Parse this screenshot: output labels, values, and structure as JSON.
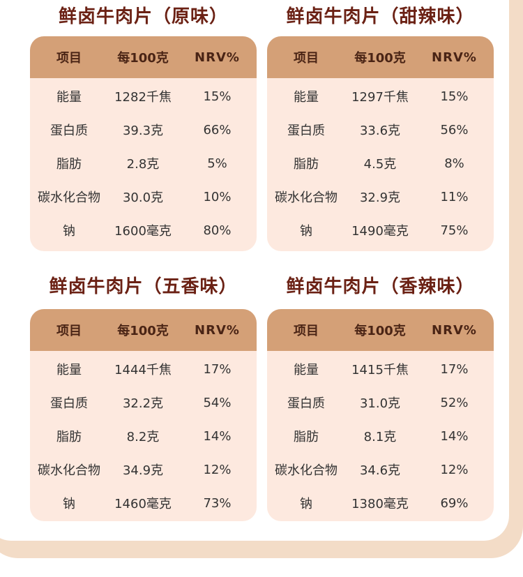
{
  "panels": [
    {
      "title": "鲜卤牛肉片（原味）",
      "headers": [
        "项目",
        "每100克",
        "NRV%"
      ],
      "rows": [
        [
          "能量",
          "1282千焦",
          "15%"
        ],
        [
          "蛋白质",
          "39.3克",
          "66%"
        ],
        [
          "脂肪",
          "2.8克",
          "5%"
        ],
        [
          "碳水化合物",
          "30.0克",
          "10%"
        ],
        [
          "钠",
          "1600毫克",
          "80%"
        ]
      ]
    },
    {
      "title": "鲜卤牛肉片（甜辣味）",
      "headers": [
        "项目",
        "每100克",
        "NRV%"
      ],
      "rows": [
        [
          "能量",
          "1297千焦",
          "15%"
        ],
        [
          "蛋白质",
          "33.6克",
          "56%"
        ],
        [
          "脂肪",
          "4.5克",
          "8%"
        ],
        [
          "碳水化合物",
          "32.9克",
          "11%"
        ],
        [
          "钠",
          "1490毫克",
          "75%"
        ]
      ]
    },
    {
      "title": "鲜卤牛肉片（五香味）",
      "headers": [
        "项目",
        "每100克",
        "NRV%"
      ],
      "rows": [
        [
          "能量",
          "1444千焦",
          "17%"
        ],
        [
          "蛋白质",
          "32.2克",
          "54%"
        ],
        [
          "脂肪",
          "8.2克",
          "14%"
        ],
        [
          "碳水化合物",
          "34.9克",
          "12%"
        ],
        [
          "钠",
          "1460毫克",
          "73%"
        ]
      ]
    },
    {
      "title": "鲜卤牛肉片（香辣味）",
      "headers": [
        "项目",
        "每100克",
        "NRV%"
      ],
      "rows": [
        [
          "能量",
          "1415千焦",
          "17%"
        ],
        [
          "蛋白质",
          "31.0克",
          "52%"
        ],
        [
          "脂肪",
          "8.1克",
          "14%"
        ],
        [
          "碳水化合物",
          "34.6克",
          "12%"
        ],
        [
          "钠",
          "1380毫克",
          "69%"
        ]
      ]
    }
  ]
}
